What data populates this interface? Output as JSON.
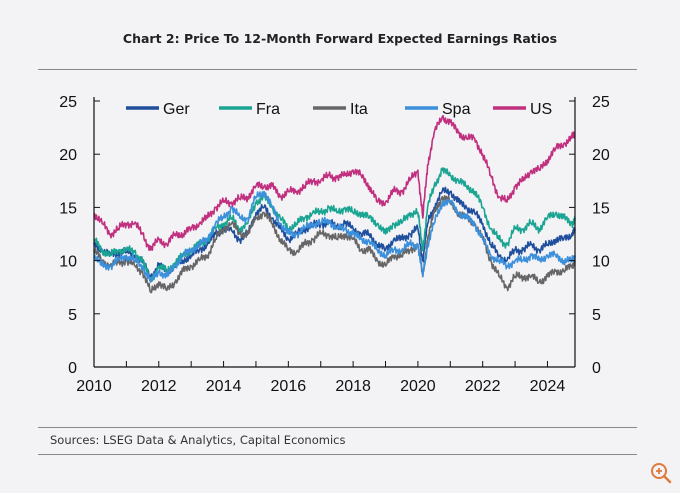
{
  "title": "Chart 2: Price To 12-Month Forward Expected Earnings Ratios",
  "source": "Sources: LSEG Data & Analytics, Capital Economics",
  "zoom_icon": "zoom-in-icon",
  "chart_data": {
    "type": "line",
    "title": "Chart 2: Price To 12-Month Forward Expected Earnings Ratios",
    "xlabel": "",
    "ylabel": "",
    "xlim": [
      2010,
      2024.85
    ],
    "ylim": [
      0,
      25
    ],
    "x_ticks": [
      "2010",
      "2012",
      "2014",
      "2016",
      "2018",
      "2020",
      "2022",
      "2024"
    ],
    "y_ticks": [
      "0",
      "5",
      "10",
      "15",
      "20",
      "25"
    ],
    "y_ticks_right": [
      "0",
      "5",
      "10",
      "15",
      "20",
      "25"
    ],
    "legend_position": "top",
    "x": [
      2010.0,
      2010.25,
      2010.5,
      2010.75,
      2011.0,
      2011.25,
      2011.5,
      2011.75,
      2012.0,
      2012.25,
      2012.5,
      2012.75,
      2013.0,
      2013.25,
      2013.5,
      2013.75,
      2014.0,
      2014.25,
      2014.5,
      2014.75,
      2015.0,
      2015.25,
      2015.5,
      2015.75,
      2016.0,
      2016.25,
      2016.5,
      2016.75,
      2017.0,
      2017.25,
      2017.5,
      2017.75,
      2018.0,
      2018.25,
      2018.5,
      2018.75,
      2019.0,
      2019.25,
      2019.5,
      2019.75,
      2020.0,
      2020.15,
      2020.3,
      2020.5,
      2020.75,
      2021.0,
      2021.25,
      2021.5,
      2021.75,
      2022.0,
      2022.25,
      2022.5,
      2022.75,
      2023.0,
      2023.25,
      2023.5,
      2023.75,
      2024.0,
      2024.25,
      2024.5,
      2024.75,
      2024.85
    ],
    "series": [
      {
        "name": "Ger",
        "color": "#1f4e9c",
        "values": [
          11.5,
          11.0,
          10.5,
          10.8,
          10.8,
          10.5,
          9.8,
          8.5,
          9.5,
          9.0,
          9.5,
          10.0,
          10.5,
          11.0,
          11.5,
          12.5,
          13.0,
          12.8,
          12.0,
          12.5,
          14.5,
          15.0,
          14.0,
          13.0,
          12.0,
          12.5,
          13.0,
          13.3,
          13.5,
          13.5,
          13.2,
          13.5,
          13.0,
          12.5,
          12.5,
          11.5,
          11.0,
          12.0,
          12.0,
          12.5,
          13.0,
          10.0,
          13.5,
          15.0,
          16.5,
          16.5,
          15.5,
          15.0,
          14.5,
          13.5,
          11.5,
          10.5,
          10.0,
          11.0,
          11.0,
          11.5,
          11.0,
          11.5,
          12.0,
          12.0,
          12.5,
          12.8
        ]
      },
      {
        "name": "Fra",
        "color": "#1aa593",
        "values": [
          12.0,
          11.0,
          10.5,
          11.0,
          11.0,
          10.8,
          10.0,
          8.0,
          9.5,
          9.0,
          9.8,
          10.5,
          11.0,
          11.5,
          12.0,
          13.0,
          13.5,
          14.0,
          13.0,
          13.5,
          15.5,
          16.0,
          15.0,
          14.0,
          13.0,
          13.5,
          14.0,
          14.5,
          14.5,
          15.0,
          14.5,
          15.0,
          14.5,
          14.5,
          14.0,
          13.5,
          12.5,
          13.5,
          13.5,
          14.5,
          14.5,
          11.0,
          15.0,
          17.0,
          18.5,
          18.0,
          17.5,
          17.0,
          16.5,
          15.0,
          13.0,
          12.0,
          11.5,
          13.0,
          13.0,
          13.5,
          13.0,
          14.0,
          14.5,
          14.0,
          13.5,
          13.8
        ]
      },
      {
        "name": "Ita",
        "color": "#666666",
        "values": [
          11.0,
          10.0,
          9.5,
          9.8,
          10.0,
          9.5,
          9.0,
          7.0,
          8.0,
          7.2,
          8.0,
          9.0,
          9.5,
          10.0,
          10.5,
          12.0,
          13.0,
          13.5,
          12.5,
          12.5,
          14.0,
          14.5,
          13.5,
          12.0,
          11.0,
          10.8,
          11.5,
          12.0,
          12.5,
          12.5,
          12.0,
          12.5,
          12.0,
          11.0,
          11.0,
          10.0,
          9.5,
          10.5,
          10.5,
          11.0,
          11.5,
          8.5,
          12.0,
          14.5,
          16.0,
          15.5,
          14.5,
          14.0,
          13.5,
          12.0,
          10.0,
          8.5,
          7.5,
          8.5,
          8.5,
          8.5,
          8.0,
          8.5,
          9.0,
          9.0,
          9.5,
          10.0
        ]
      },
      {
        "name": "Spa",
        "color": "#3b8fdb",
        "values": [
          10.5,
          9.5,
          9.5,
          10.0,
          10.5,
          10.0,
          9.5,
          8.0,
          9.0,
          8.5,
          9.5,
          10.5,
          11.0,
          11.5,
          12.0,
          13.5,
          14.0,
          15.0,
          14.0,
          14.0,
          16.0,
          16.5,
          15.0,
          13.5,
          12.5,
          12.5,
          13.0,
          13.5,
          13.5,
          13.8,
          13.0,
          13.0,
          12.5,
          12.0,
          11.8,
          11.0,
          10.5,
          11.0,
          11.0,
          11.5,
          11.5,
          8.5,
          11.5,
          13.5,
          15.5,
          15.5,
          14.5,
          14.0,
          13.5,
          12.0,
          10.5,
          10.0,
          9.5,
          10.0,
          10.0,
          10.5,
          10.0,
          10.5,
          10.5,
          10.0,
          10.0,
          10.5
        ]
      },
      {
        "name": "US",
        "color": "#c0307f",
        "values": [
          14.5,
          13.5,
          12.5,
          13.0,
          13.5,
          13.5,
          12.5,
          11.0,
          12.0,
          11.5,
          12.5,
          12.5,
          13.0,
          13.5,
          14.0,
          15.0,
          15.5,
          15.5,
          15.8,
          16.0,
          17.0,
          17.0,
          17.0,
          16.0,
          16.5,
          16.5,
          17.0,
          17.5,
          17.5,
          18.0,
          17.8,
          18.0,
          18.5,
          18.0,
          17.0,
          15.5,
          15.5,
          16.5,
          16.5,
          17.5,
          18.5,
          14.0,
          19.0,
          22.0,
          23.5,
          23.0,
          22.0,
          21.5,
          21.5,
          20.0,
          18.0,
          16.0,
          15.5,
          17.0,
          17.5,
          18.5,
          18.5,
          19.5,
          20.5,
          21.0,
          21.5,
          22.0
        ]
      }
    ]
  }
}
